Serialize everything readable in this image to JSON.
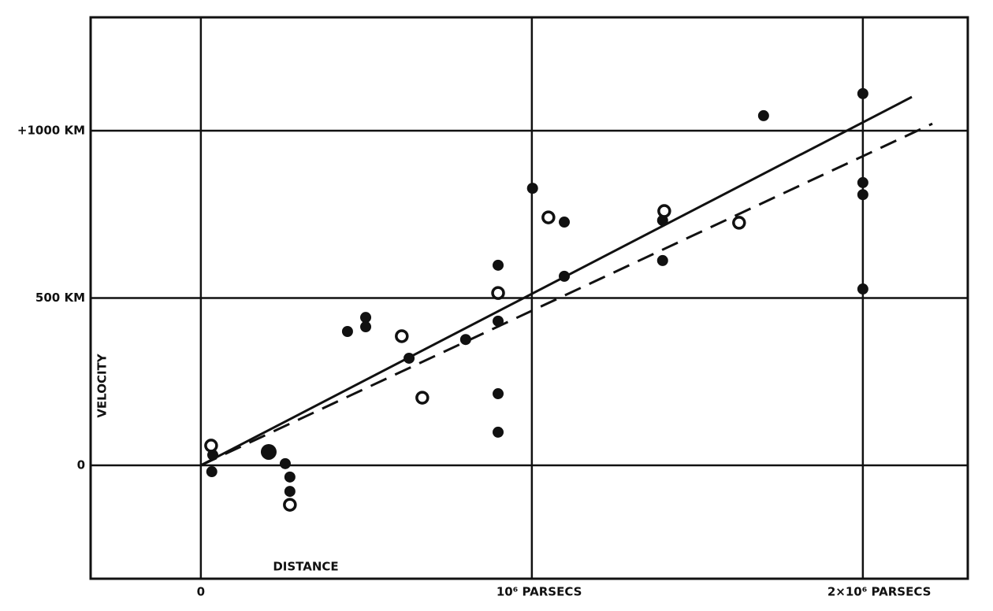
{
  "chart_data": {
    "type": "scatter",
    "y_label": "VELOCITY",
    "x_label": "DISTANCE",
    "xlim": [
      -333000,
      2317000
    ],
    "ylim": [
      -339,
      1339
    ],
    "xticks": [
      0,
      {
        "value": 1000000,
        "label": "10⁶ PARSECS"
      },
      {
        "value": 2000000,
        "label": "2×10⁶ PARSECS"
      }
    ],
    "yticks": [
      0,
      {
        "value": 500,
        "label": "500 KM"
      },
      {
        "value": 1000,
        "label": "+1000 KM"
      }
    ],
    "grid": true,
    "color": "#111111",
    "series": [
      {
        "marker": "dot",
        "x": [
          33000,
          36000,
          255000,
          269000,
          269000,
          443000,
          498000,
          498000,
          629000,
          800000,
          898000,
          898000,
          898000,
          898000,
          1002000,
          1098000,
          1098000,
          1395000,
          1395000,
          1700000,
          2000000,
          2000000,
          2000000,
          2000000
        ],
        "values": [
          -19,
          31,
          5,
          -35,
          -78,
          400,
          442,
          414,
          320,
          376,
          598,
          431,
          214,
          99,
          828,
          727,
          565,
          612,
          732,
          1045,
          1111,
          845,
          809,
          527
        ]
      },
      {
        "marker": "big-dot",
        "x": [
          205000
        ],
        "values": [
          40
        ]
      },
      {
        "marker": "circle",
        "x": [
          31000,
          269000,
          607000,
          669000,
          898000,
          1050000,
          1400000,
          1626000
        ],
        "values": [
          59,
          -118,
          386,
          202,
          515,
          741,
          760,
          725
        ]
      }
    ],
    "fits": [
      {
        "style": "solid",
        "x": [
          0,
          2148000
        ],
        "y": [
          0,
          1101
        ]
      },
      {
        "style": "dashed",
        "x": [
          0,
          2210000
        ],
        "y": [
          0,
          1021
        ]
      }
    ]
  }
}
